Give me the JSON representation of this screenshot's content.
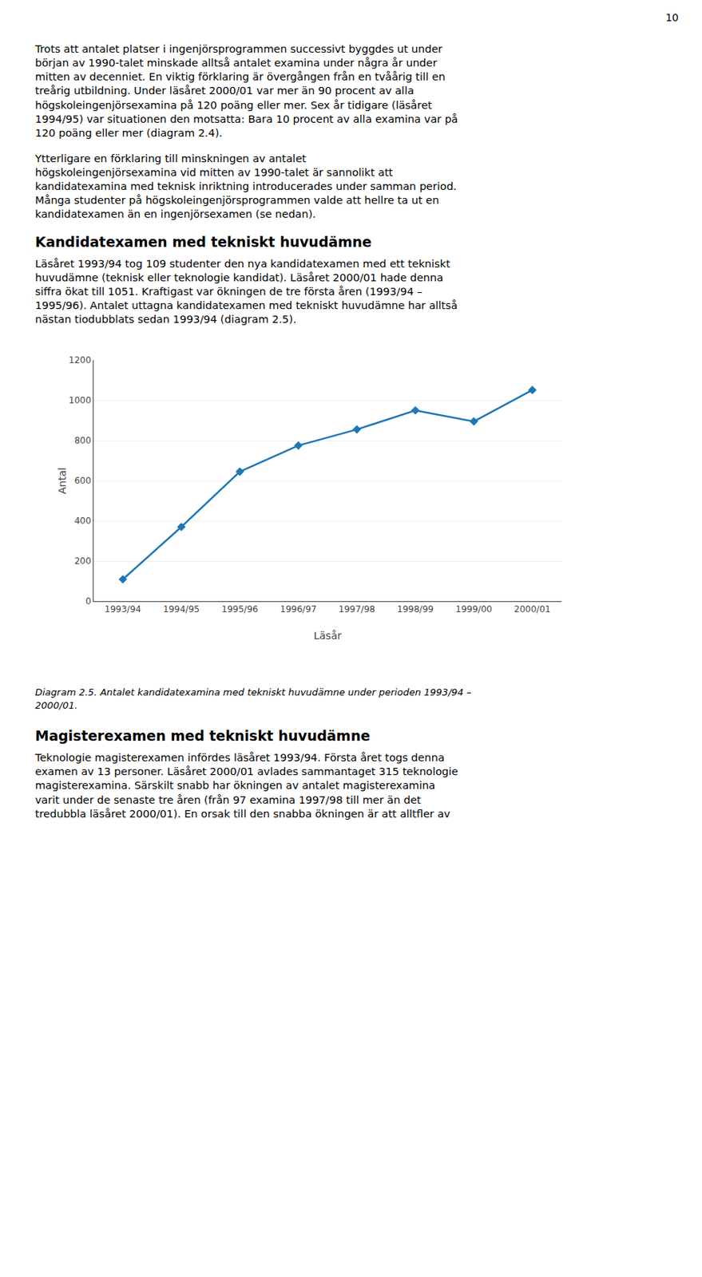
{
  "chart_data": {
    "type": "line",
    "annotations": [
      "10",
      "Trots att antalet platser i ingenjörsprogrammen successivt byggdes ut under\nbörjan av 1990-talet minskade alltså antalet examina under några år under\nmitten av decenniet. En viktig förklaring är övergången från en tvåårig till en\ntreårig utbildning. Under läsåret 2000/01 var mer än 90 procent av alla\nhögskoleingenjörsexamina på 120 poäng eller mer. Sex år tidigare (läsåret\n1994/95) var situationen den motsatta: Bara 10 procent av alla examina var på\n120 poäng eller mer (diagram 2.4).",
      "Ytterligare en förklaring till minskningen av antalet\nhögskoleingenjörsexamina vid mitten av 1990-talet är sannolikt att\nkandidatexamina med teknisk inriktning introducerades under samman period.\nMånga studenter på högskoleingenjörsprogrammen valde att hellre ta ut en\nkandidatexamen än en ingenjörsexamen (se nedan).",
      "Kandidatexamen med tekniskt huvudämne",
      "Läsåret 1993/94 tog 109 studenter den nya kandidatexamen med ett tekniskt\nhuvudämne (teknisk eller teknologie kandidat). Läsåret 2000/01 hade denna\nsiffra ökat till 1051. Kraftigast var ökningen de tre första åren (1993/94 –\n1995/96). Antalet uttagna kandidatexamen med tekniskt huvudämne har alltså\nnästan tiodubblats sedan 1993/94 (diagram 2.5).",
      "Diagram 2.5. Antalet kandidatexamina med tekniskt huvudämne under perioden 1993/94 –\n2000/01.",
      "Magisterexamen med tekniskt huvudämne",
      "Teknologie magisterexamen infördes läsåret 1993/94. Första året togs denna\nexamen av 13 personer. Läsåret 2000/01 avlades sammantaget 315 teknologie\nmagisterexamina. Särskilt snabb har ökningen av antalet magisterexamina\nvarit under de senaste tre åren (från 97 examina 1997/98 till mer än det\ntredubbla läsåret 2000/01). En orsak till den snabba ökningen är att alltfler av"
    ],
    "ylabel": "Antal",
    "xlabel": "Läsår",
    "categories": [
      "1993/94",
      "1994/95",
      "1995/96",
      "1996/97",
      "1997/98",
      "1998/99",
      "1999/00",
      "2000/01"
    ],
    "values": [
      109,
      370,
      645,
      775,
      855,
      950,
      895,
      1051
    ],
    "marker": "diamond",
    "ylim": [
      0,
      1200
    ],
    "yticks": [
      0,
      200,
      400,
      600,
      800,
      1000,
      1200
    ],
    "grid": true
  }
}
